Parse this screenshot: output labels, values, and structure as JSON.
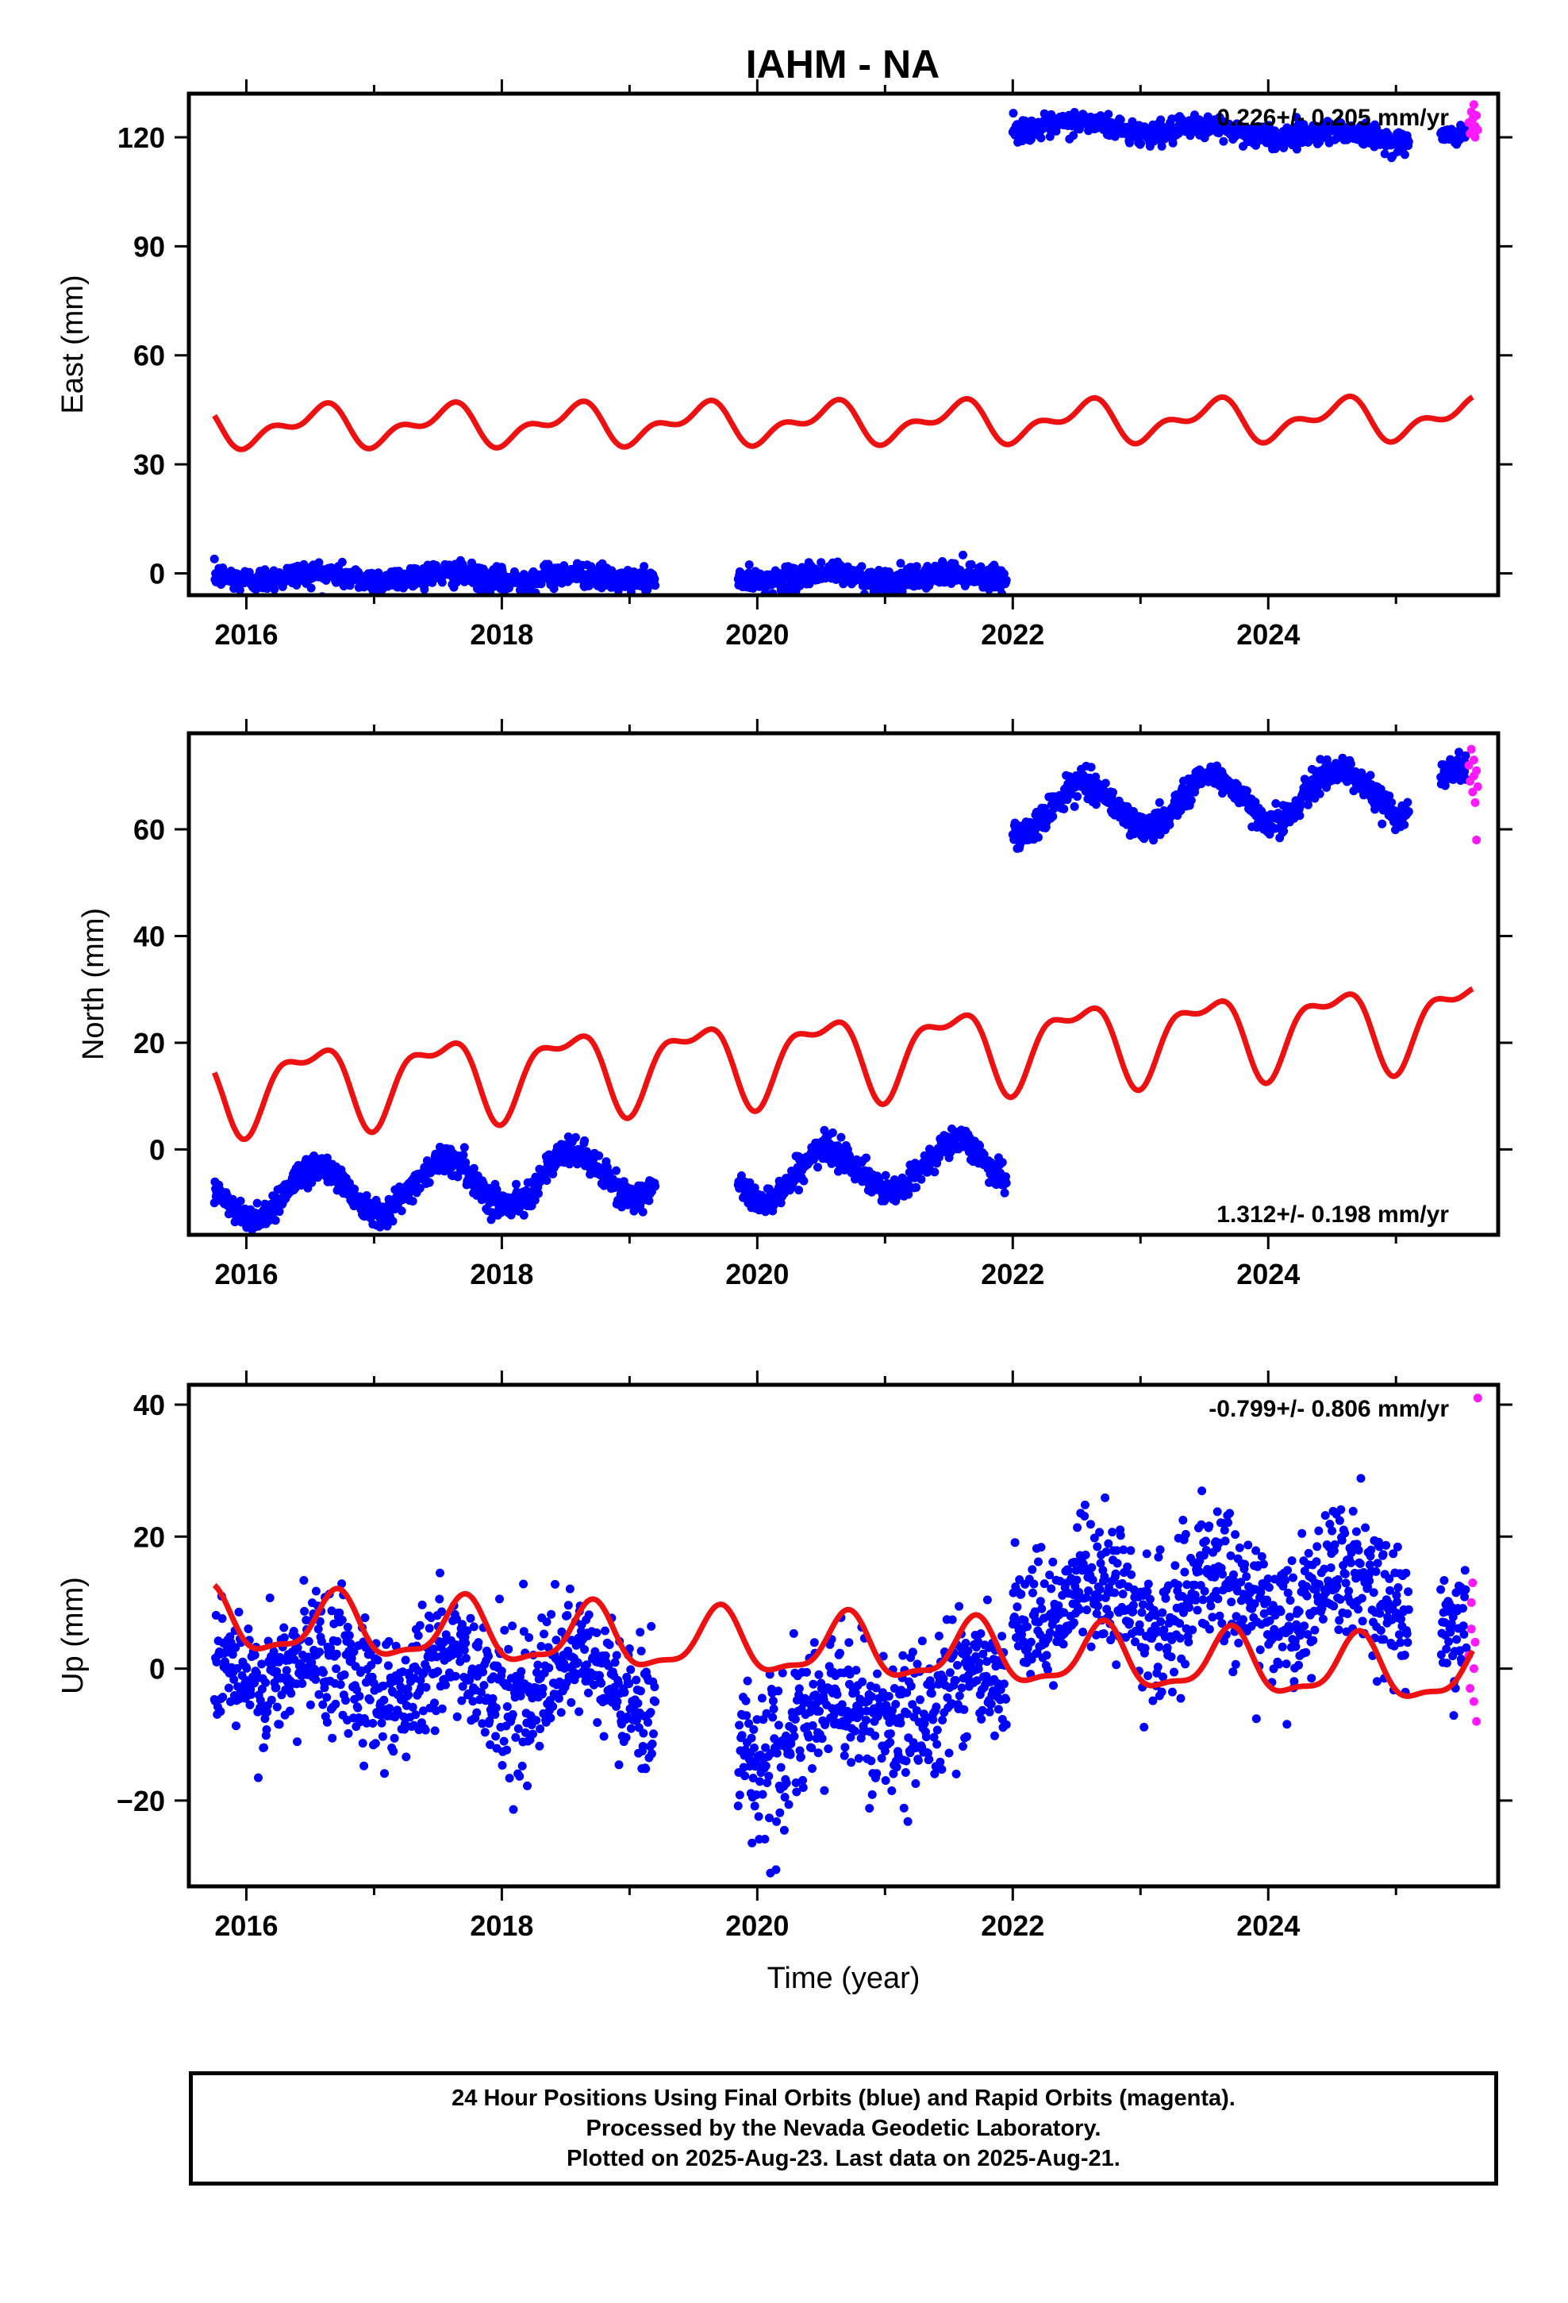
{
  "title": "IAHM - NA",
  "colors": {
    "final": "#0000ff",
    "rapid": "#ff19ff",
    "model": "#ee1111",
    "axis": "#000000"
  },
  "chart_data": [
    {
      "type": "scatter",
      "ylabel": "East (mm)",
      "xlim": [
        2015.55,
        2025.8
      ],
      "ylim": [
        -6,
        132
      ],
      "xticks": [
        2016,
        2018,
        2020,
        2022,
        2024
      ],
      "yticks": [
        0,
        30,
        60,
        90,
        120
      ],
      "rate": "0.226+/- 0.205 mm/yr",
      "rate_position": "top-right",
      "series": [
        {
          "name": "Final Orbits (blue)",
          "segments": [
            {
              "x_start": 2015.75,
              "x_end": 2019.2,
              "y_start": -0.8,
              "y_end": -1.2,
              "amplitude": 1.0,
              "phase": 0.55,
              "noise": 1.6,
              "density": 230
            },
            {
              "x_start": 2019.85,
              "x_end": 2021.95,
              "y_start": -1.2,
              "y_end": -0.8,
              "amplitude": 1.2,
              "phase": 0.55,
              "noise": 1.6,
              "density": 230
            },
            {
              "x_start": 2022.0,
              "x_end": 2025.1,
              "y_start": 123.5,
              "y_end": 120.0,
              "amplitude": 1.3,
              "phase": 0.55,
              "noise": 1.5,
              "density": 230
            },
            {
              "x_start": 2025.35,
              "x_end": 2025.55,
              "y_start": 120.0,
              "y_end": 120.5,
              "amplitude": 0.5,
              "phase": 0.55,
              "noise": 1.2,
              "density": 230
            }
          ]
        },
        {
          "name": "Rapid Orbits (magenta)",
          "points": [
            [
              2025.57,
              124
            ],
            [
              2025.58,
              121
            ],
            [
              2025.59,
              127
            ],
            [
              2025.6,
              122
            ],
            [
              2025.6,
              125
            ],
            [
              2025.61,
              129
            ],
            [
              2025.62,
              123
            ],
            [
              2025.62,
              120
            ],
            [
              2025.63,
              126
            ],
            [
              2025.64,
              122
            ]
          ]
        }
      ],
      "model": {
        "x_start": 2015.75,
        "x_end": 2025.6,
        "offset": 41.5,
        "trend": 0.226,
        "annual_amp": 4.5,
        "annual_phase": 0.3,
        "semi_amp": 2.8,
        "semi_phase": 0.55
      }
    },
    {
      "type": "scatter",
      "ylabel": "North (mm)",
      "xlim": [
        2015.55,
        2025.8
      ],
      "ylim": [
        -16,
        78
      ],
      "xticks": [
        2016,
        2018,
        2020,
        2022,
        2024
      ],
      "yticks": [
        0,
        20,
        40,
        60
      ],
      "rate": "1.312+/- 0.198 mm/yr",
      "rate_position": "bottom-right",
      "series": [
        {
          "name": "Final Orbits (blue)",
          "segments": [
            {
              "x_start": 2015.75,
              "x_end": 2019.2,
              "y_start": -8.8,
              "y_end": -4.3,
              "amplitude": 4.5,
              "phase": 0.55,
              "noise": 1.3,
              "density": 230
            },
            {
              "x_start": 2019.85,
              "x_end": 2021.95,
              "y_start": -5.2,
              "y_end": -2.4,
              "amplitude": 4.5,
              "phase": 0.55,
              "noise": 1.3,
              "density": 230
            },
            {
              "x_start": 2022.0,
              "x_end": 2025.1,
              "y_start": 63.4,
              "y_end": 67.5,
              "amplitude": 4.5,
              "phase": 0.55,
              "noise": 1.3,
              "density": 230
            },
            {
              "x_start": 2025.35,
              "x_end": 2025.55,
              "y_start": 70.0,
              "y_end": 70.5,
              "amplitude": 1.0,
              "phase": 0.55,
              "noise": 1.3,
              "density": 230
            }
          ]
        },
        {
          "name": "Rapid Orbits (magenta)",
          "points": [
            [
              2025.57,
              72
            ],
            [
              2025.58,
              69
            ],
            [
              2025.59,
              75
            ],
            [
              2025.6,
              67
            ],
            [
              2025.61,
              70
            ],
            [
              2025.61,
              73
            ],
            [
              2025.62,
              65
            ],
            [
              2025.63,
              58
            ],
            [
              2025.63,
              71
            ],
            [
              2025.64,
              68
            ]
          ]
        }
      ],
      "model": {
        "x_start": 2015.75,
        "x_end": 2025.6,
        "offset": 18.0,
        "trend": 1.312,
        "annual_amp": 7.0,
        "annual_phase": 0.25,
        "semi_amp": 3.0,
        "semi_phase": 0.6
      }
    },
    {
      "type": "scatter",
      "ylabel": "Up (mm)",
      "xlabel": "Time (year)",
      "xlim": [
        2015.55,
        2025.8
      ],
      "ylim": [
        -33,
        43
      ],
      "xticks": [
        2016,
        2018,
        2020,
        2022,
        2024
      ],
      "yticks": [
        -20,
        0,
        20,
        40
      ],
      "rate": "-0.799+/- 0.806 mm/yr",
      "rate_position": "top-right",
      "series": [
        {
          "name": "Final Orbits (blue)",
          "segments": [
            {
              "x_start": 2015.75,
              "x_end": 2019.2,
              "y_start": 0.5,
              "y_end": -3.0,
              "amplitude": 3.5,
              "phase": 0.62,
              "noise": 5.0,
              "density": 230
            },
            {
              "x_start": 2019.85,
              "x_end": 2021.95,
              "y_start": -11.0,
              "y_end": -3.0,
              "amplitude": 4.0,
              "phase": 0.62,
              "noise": 5.5,
              "density": 230
            },
            {
              "x_start": 2022.0,
              "x_end": 2025.1,
              "y_start": 9.5,
              "y_end": 11.0,
              "amplitude": 4.0,
              "phase": 0.62,
              "noise": 5.0,
              "density": 230
            },
            {
              "x_start": 2025.35,
              "x_end": 2025.55,
              "y_start": 6.0,
              "y_end": 5.0,
              "amplitude": 1.0,
              "phase": 0.62,
              "noise": 5.0,
              "density": 230
            }
          ]
        },
        {
          "name": "Rapid Orbits (magenta)",
          "points": [
            [
              2025.57,
              2
            ],
            [
              2025.58,
              -3
            ],
            [
              2025.59,
              6
            ],
            [
              2025.59,
              10
            ],
            [
              2025.6,
              13
            ],
            [
              2025.61,
              -5
            ],
            [
              2025.61,
              0
            ],
            [
              2025.62,
              4
            ],
            [
              2025.63,
              -8
            ],
            [
              2025.64,
              41
            ]
          ]
        }
      ],
      "model": {
        "x_start": 2015.75,
        "x_end": 2025.6,
        "offset": 3.0,
        "trend": -0.799,
        "annual_amp": 4.5,
        "annual_phase": 0.45,
        "semi_amp": 1.5,
        "semi_phase": 0.6
      }
    }
  ],
  "footer": {
    "line1": "24 Hour Positions Using Final Orbits (blue) and Rapid Orbits (magenta).",
    "line2": "Processed by the Nevada Geodetic Laboratory.",
    "line3": "Plotted on 2025-Aug-23. Last data on 2025-Aug-21."
  }
}
